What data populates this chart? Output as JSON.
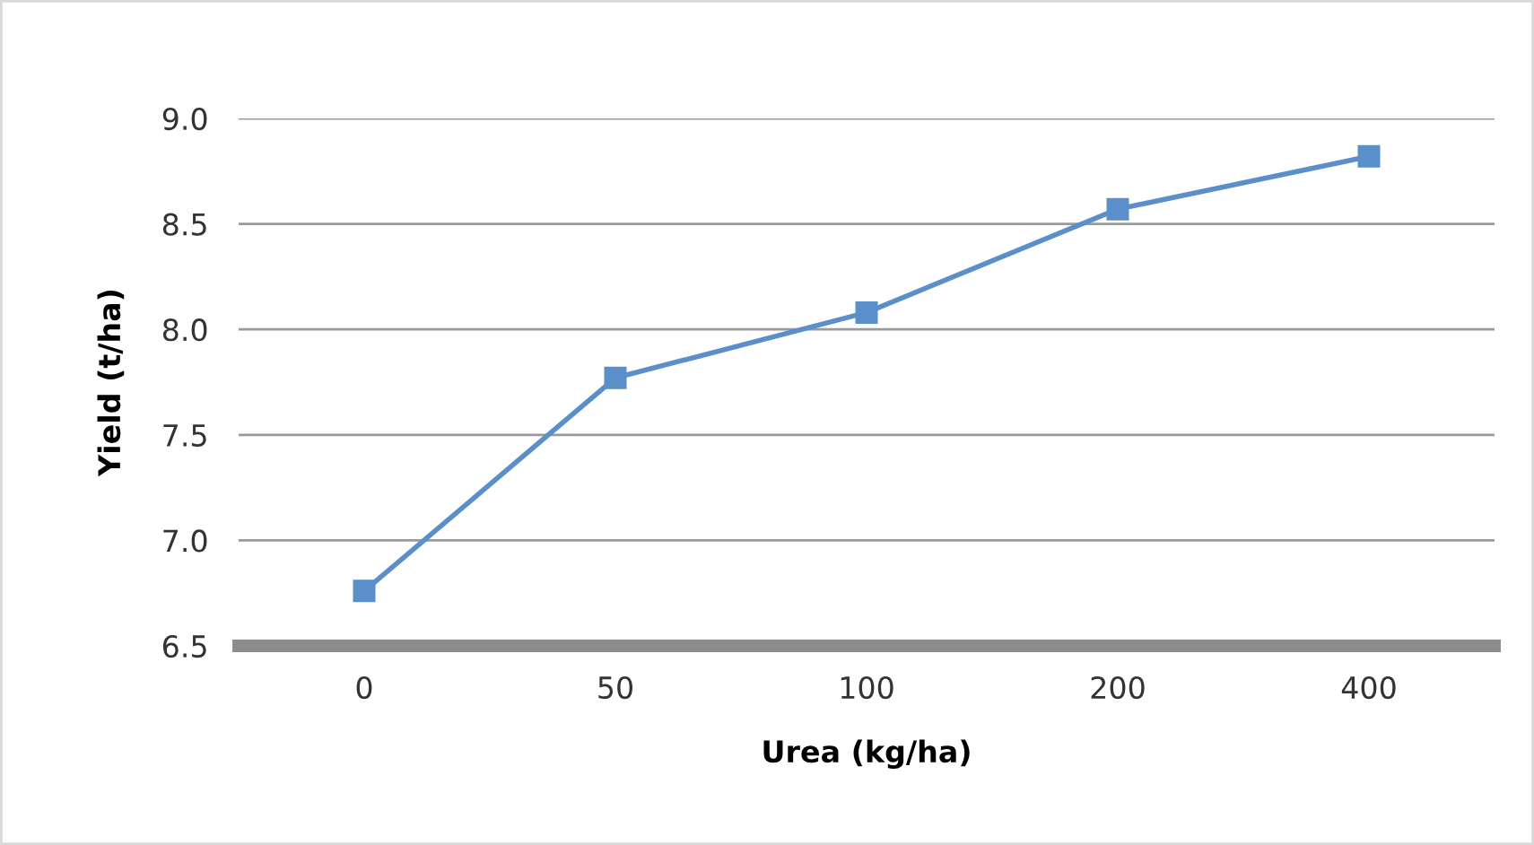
{
  "chart_data": {
    "type": "line",
    "xlabel": "Urea (kg/ha)",
    "ylabel": "Yield (t/ha)",
    "categories": [
      "0",
      "50",
      "100",
      "200",
      "400"
    ],
    "series": [
      {
        "color": "#5b8fc9",
        "values": [
          6.76,
          7.77,
          8.08,
          8.57,
          8.82
        ]
      }
    ],
    "ylim": [
      6.5,
      9.0
    ],
    "yticks": [
      {
        "value": 6.5,
        "label": "6.5"
      },
      {
        "value": 7.0,
        "label": "7.0"
      },
      {
        "value": 7.5,
        "label": "7.5"
      },
      {
        "value": 8.0,
        "label": "8.0"
      },
      {
        "value": 8.5,
        "label": "8.5"
      },
      {
        "value": 9.0,
        "label": "9.0"
      }
    ],
    "grid": "y",
    "marker": "square",
    "line_style": "solid",
    "legend": false
  }
}
